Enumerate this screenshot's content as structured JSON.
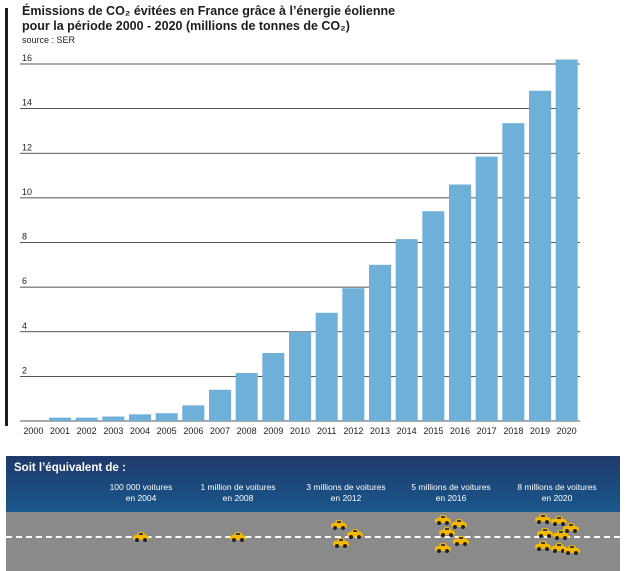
{
  "header": {
    "title_line1": "Émissions de CO₂ évitées en France grâce à l’énergie éolienne",
    "title_line2": "pour la période 2000 - 2020 (millions de tonnes de CO₂)",
    "source": "source : SER"
  },
  "chart_data": {
    "type": "bar",
    "categories": [
      "2000",
      "2001",
      "2002",
      "2003",
      "2004",
      "2005",
      "2006",
      "2007",
      "2008",
      "2009",
      "2010",
      "2011",
      "2012",
      "2013",
      "2014",
      "2015",
      "2016",
      "2017",
      "2018",
      "2019",
      "2020"
    ],
    "values": [
      0.0,
      0.15,
      0.15,
      0.2,
      0.3,
      0.35,
      0.7,
      1.4,
      2.15,
      3.05,
      4.0,
      4.85,
      5.95,
      7.0,
      8.15,
      9.4,
      10.6,
      11.85,
      13.35,
      14.8,
      16.2
    ],
    "ylim": [
      0,
      16
    ],
    "yticks": [
      2,
      4,
      6,
      8,
      10,
      12,
      14,
      16
    ],
    "grid": true,
    "bar_color": "#6fb0d8"
  },
  "equivalent": {
    "heading": "Soit l’équivalent de :",
    "milestones": [
      {
        "line1": "100 000 voitures",
        "line2": "en 2004"
      },
      {
        "line1": "1 million de voitures",
        "line2": "en 2008"
      },
      {
        "line1": "3 millions de voitures",
        "line2": "en 2012"
      },
      {
        "line1": "5 millions de voitures",
        "line2": "en 2016"
      },
      {
        "line1": "8 millions de voitures",
        "line2": "en 2020"
      }
    ],
    "car_counts": [
      1,
      1,
      3,
      5,
      8
    ],
    "car_icon": "car-icon",
    "car_color": "#f5b800"
  }
}
